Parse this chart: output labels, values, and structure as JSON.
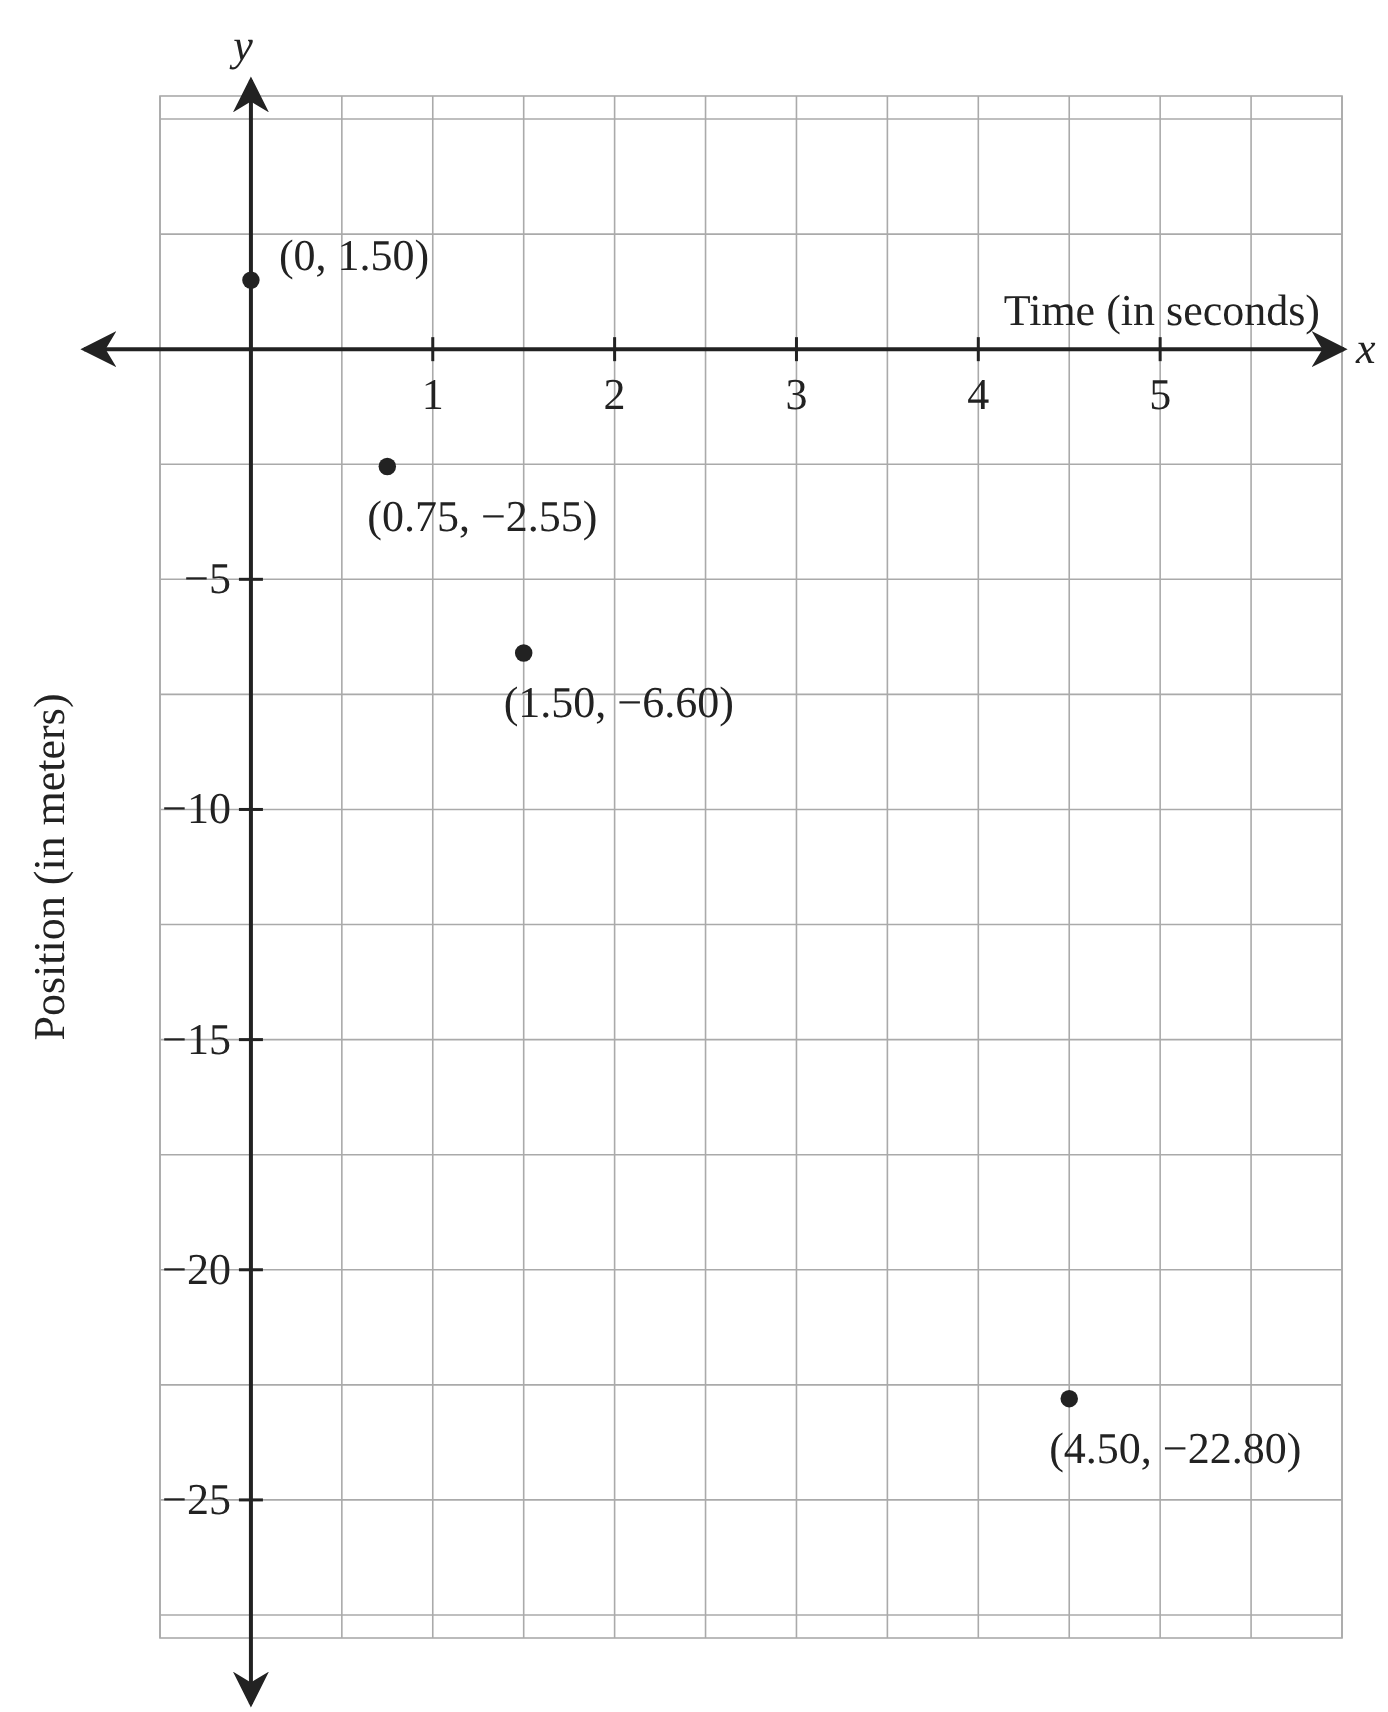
{
  "chart_data": {
    "type": "scatter",
    "xlabel": "Time (in seconds)",
    "ylabel": "Position (in meters)",
    "x": [
      0,
      0.75,
      1.5,
      4.5
    ],
    "values": [
      1.5,
      -2.55,
      -6.6,
      -22.8
    ],
    "value_labels": [
      "(0, 1.50)",
      "(0.75, −2.55)",
      "(1.50, −6.60)",
      "(4.50, −22.80)"
    ],
    "color": "#222222",
    "marker": "circle",
    "grid": true,
    "xlim": [
      -0.5,
      6
    ],
    "ylim": [
      -28,
      5.5
    ],
    "xticks": [
      1,
      2,
      3,
      4,
      5
    ],
    "yticks": [
      -5,
      -10,
      -15,
      -20,
      -25
    ],
    "annotations": [
      "x",
      "y"
    ]
  }
}
